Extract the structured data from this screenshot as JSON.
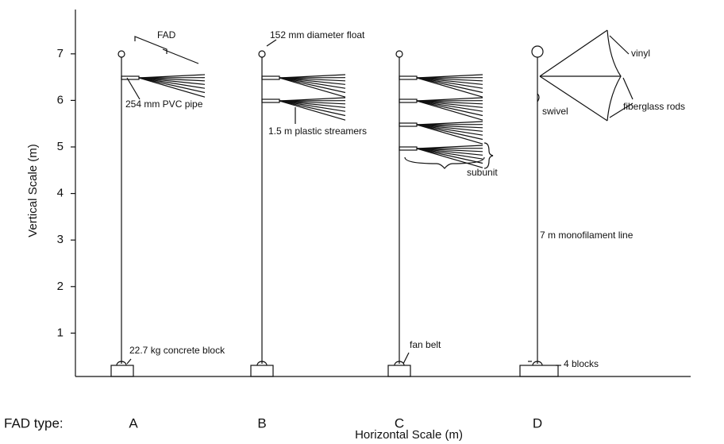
{
  "axes": {
    "y_label": "Vertical Scale (m)",
    "x_label": "Horizontal Scale (m)",
    "yticks": [
      1,
      2,
      3,
      4,
      5,
      6,
      7
    ]
  },
  "fad_type_label": "FAD type:",
  "fads": [
    {
      "label": "A"
    },
    {
      "label": "B"
    },
    {
      "label": "C"
    },
    {
      "label": "D"
    }
  ],
  "annotations": [
    "FAD",
    "254 mm PVC pipe",
    "22.7 kg concrete block",
    "152 mm diameter float",
    "1.5 m plastic streamers",
    "subunit",
    "fan belt",
    "vinyl",
    "fiberglass rods",
    "swivel",
    "7 m monofilament line",
    "4 blocks"
  ]
}
